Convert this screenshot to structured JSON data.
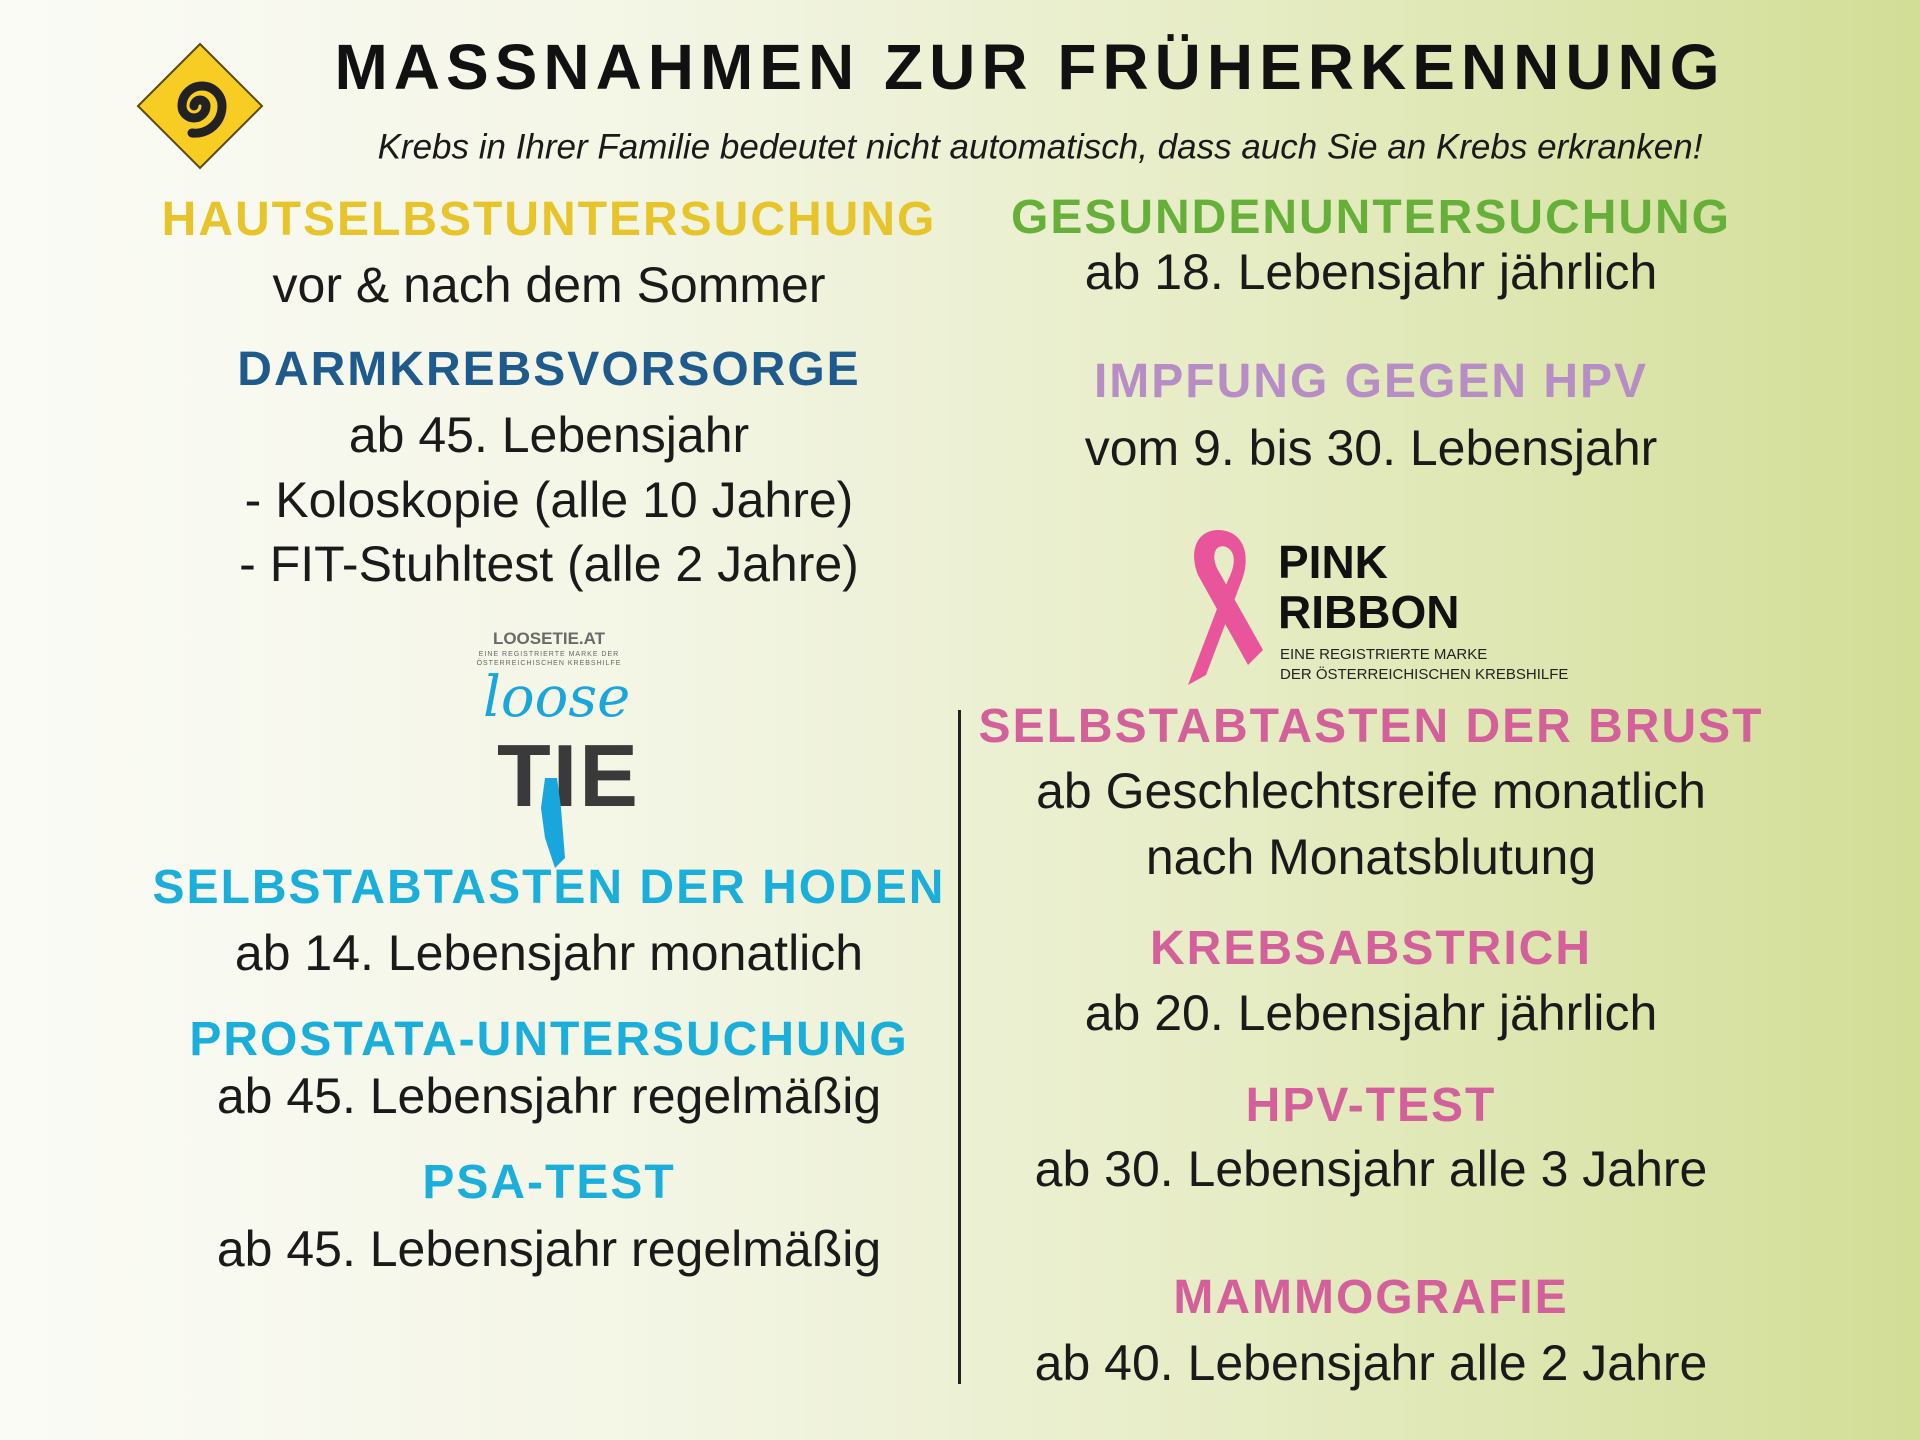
{
  "header": {
    "title": "MASSNAHMEN ZUR FRÜHERKENNUNG",
    "subtitle": "Krebs in Ihrer Familie bedeutet nicht automatisch, dass auch Sie an Krebs erkranken!",
    "logo_icon": "spiral-diamond-icon"
  },
  "colors": {
    "yellow": "#e6c42a",
    "green": "#66b03a",
    "blue": "#1f5a8c",
    "lilac": "#b78dc5",
    "pink": "#d3609b",
    "cyan": "#1aaedb"
  },
  "left": [
    {
      "heading": "HAUTSELBSTUNTERSUCHUNG",
      "lines": [
        "vor & nach dem Sommer"
      ]
    },
    {
      "heading": "DARMKREBSVORSORGE",
      "lines": [
        "ab 45. Lebensjahr",
        "- Koloskopie (alle 10 Jahre)",
        "- FIT-Stuhltest (alle 2 Jahre)"
      ]
    },
    {
      "heading": "SELBSTABTASTEN DER HODEN",
      "lines": [
        "ab 14. Lebensjahr monatlich"
      ]
    },
    {
      "heading": "PROSTATA-UNTERSUCHUNG",
      "lines": [
        "ab 45. Lebensjahr regelmäßig"
      ]
    },
    {
      "heading": "PSA-TEST",
      "lines": [
        "ab 45. Lebensjahr regelmäßig"
      ]
    }
  ],
  "right": [
    {
      "heading": "GESUNDENUNTERSUCHUNG",
      "lines": [
        "ab 18. Lebensjahr jährlich"
      ]
    },
    {
      "heading": "IMPFUNG GEGEN HPV",
      "lines": [
        "vom 9. bis 30. Lebensjahr"
      ]
    },
    {
      "heading": "SELBSTABTASTEN DER BRUST",
      "lines": [
        "ab Geschlechtsreife monatlich",
        "nach Monatsblutung"
      ]
    },
    {
      "heading": "KREBSABSTRICH",
      "lines": [
        "ab 20. Lebensjahr jährlich"
      ]
    },
    {
      "heading": "HPV-TEST",
      "lines": [
        "ab 30. Lebensjahr alle 3 Jahre"
      ]
    },
    {
      "heading": "MAMMOGRAFIE",
      "lines": [
        "ab 40. Lebensjahr alle 2 Jahre"
      ]
    }
  ],
  "loosetie": {
    "site": "LOOSETIE.AT",
    "tag1": "EINE REGISTRIERTE MARKE DER",
    "tag2": "ÖSTERREICHISCHEN KREBSHILFE",
    "script": "loose",
    "word": "TIE"
  },
  "pinkribbon": {
    "line1": "PINK",
    "line2": "RIBBON",
    "tag1": "EINE REGISTRIERTE MARKE",
    "tag2": "DER ÖSTERREICHISCHEN KREBSHILFE"
  }
}
